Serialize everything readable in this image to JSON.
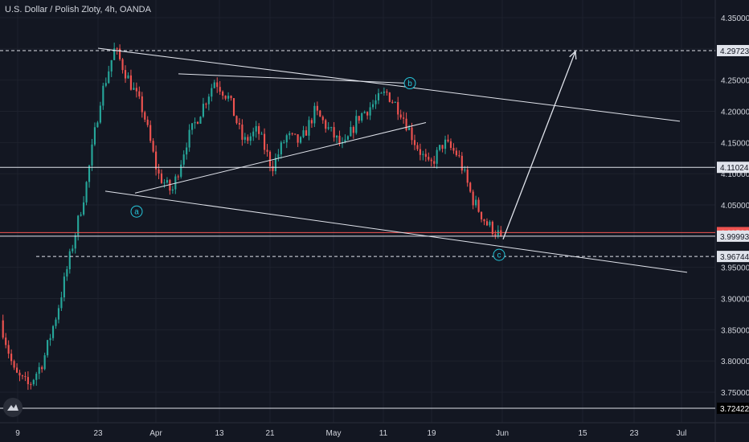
{
  "title": "U.S. Dollar / Polish Zloty, 4h, OANDA",
  "colors": {
    "background": "#131722",
    "grid": "#1e222d",
    "up": "#26a69a",
    "down": "#ef5350",
    "axis_text": "#d1d4dc",
    "drawing": "#e0e3eb",
    "current_price_bg": "#ef5350",
    "marker_color": "#26c6da"
  },
  "chart_data": {
    "type": "candlestick",
    "symbol": "USDPLN",
    "timeframe": "4h",
    "ylim": [
      3.72,
      4.36
    ],
    "price_ticks": [
      "4.35000",
      "4.30000",
      "4.25000",
      "4.20000",
      "4.15000",
      "4.10000",
      "4.05000",
      "4.00000",
      "3.95000",
      "3.90000",
      "3.85000",
      "3.80000",
      "3.75000"
    ],
    "time_ticks": [
      "9",
      "23",
      "Apr",
      "13",
      "21",
      "May",
      "11",
      "19",
      "Jun",
      "15",
      "23",
      "Jul"
    ],
    "highlighted_levels": [
      {
        "label": "4.29723",
        "value": 4.29723,
        "style": "dashed"
      },
      {
        "label": "4.11024",
        "value": 4.11024,
        "style": "solid"
      },
      {
        "label": "4.00566",
        "value": 4.00566,
        "style": "solid",
        "current": true
      },
      {
        "label": "3.99993",
        "value": 3.99993,
        "style": "solid"
      },
      {
        "label": "3.96744",
        "value": 3.96744,
        "style": "dashed"
      },
      {
        "label": "3.72422",
        "value": 3.72422,
        "style": "solid"
      }
    ],
    "wave_labels": [
      {
        "label": "a",
        "value": 4.06
      },
      {
        "label": "b",
        "value": 4.245
      },
      {
        "label": "c",
        "value": 3.97
      }
    ],
    "price_path": [
      3.865,
      3.78,
      3.76,
      3.8,
      3.88,
      3.98,
      4.08,
      4.22,
      4.3,
      4.25,
      4.2,
      4.1,
      4.07,
      4.15,
      4.2,
      4.25,
      4.22,
      4.15,
      4.17,
      4.11,
      4.16,
      4.15,
      4.2,
      4.17,
      4.14,
      4.19,
      4.21,
      4.23,
      4.2,
      4.15,
      4.11,
      4.15,
      4.13,
      4.06,
      4.02,
      4.0
    ]
  }
}
